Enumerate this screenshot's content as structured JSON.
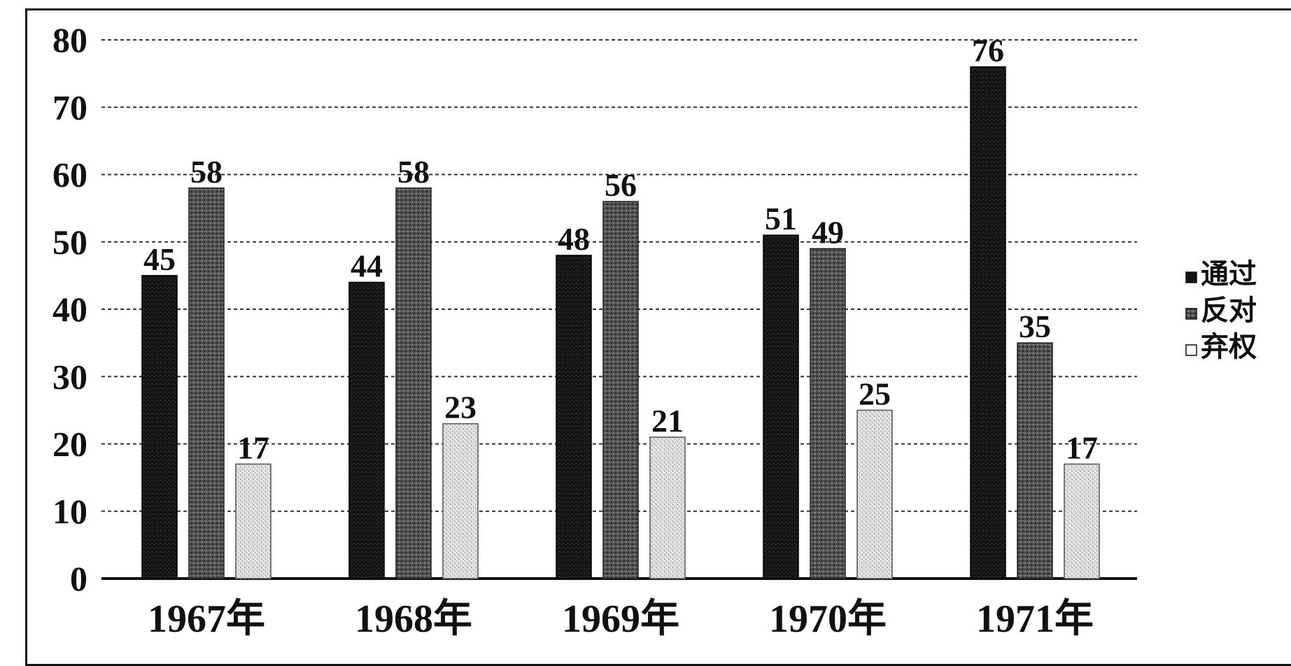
{
  "chart_data": {
    "type": "bar",
    "categories": [
      "1967年",
      "1968年",
      "1969年",
      "1970年",
      "1971年"
    ],
    "series": [
      {
        "name": "通过",
        "values": [
          45,
          44,
          48,
          51,
          76
        ]
      },
      {
        "name": "反对",
        "values": [
          58,
          58,
          56,
          49,
          35
        ]
      },
      {
        "name": "弃权",
        "values": [
          17,
          23,
          21,
          25,
          17
        ]
      }
    ],
    "yticks": [
      "0",
      "10",
      "20",
      "30",
      "40",
      "50",
      "60",
      "70",
      "80"
    ],
    "ylim": [
      0,
      80
    ],
    "grid": true,
    "legend": "right",
    "colors": [
      "#151515",
      "#555555",
      "#d0d0d0"
    ]
  }
}
